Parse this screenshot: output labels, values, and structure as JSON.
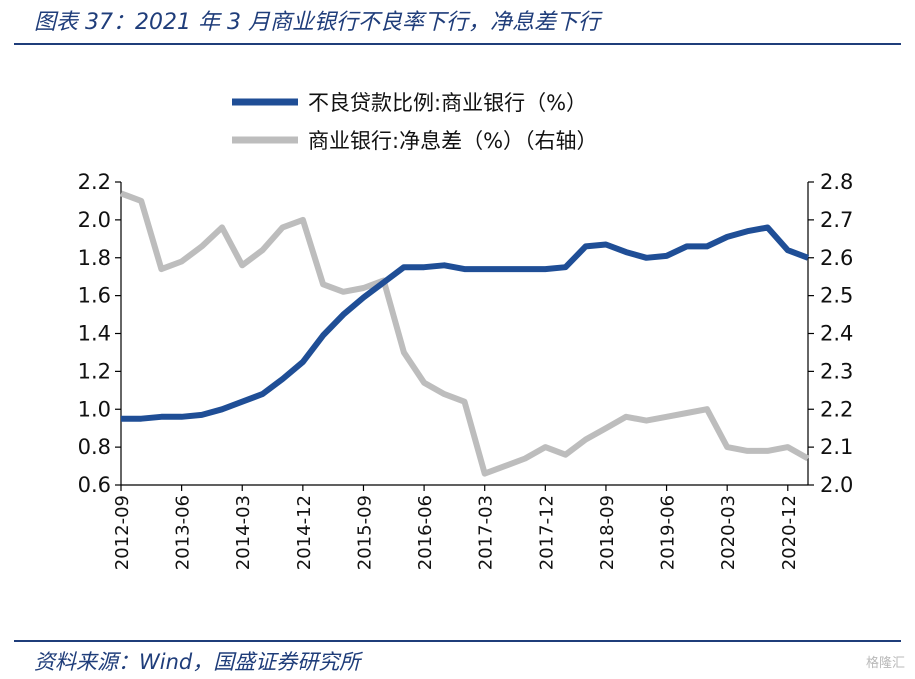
{
  "header": {
    "title": "图表 37：2021 年 3 月商业银行不良率下行，净息差下行"
  },
  "footer": {
    "source": "资料来源：Wind，国盛证券研究所",
    "watermark": "格隆汇"
  },
  "colors": {
    "npl": "#1f4e96",
    "nim": "#bdbdbd",
    "frame": "#1f3d7a"
  },
  "chart_data": {
    "type": "line",
    "title": "",
    "x": [
      "2012-09",
      "2012-12",
      "2013-03",
      "2013-06",
      "2013-09",
      "2013-12",
      "2014-03",
      "2014-06",
      "2014-09",
      "2014-12",
      "2015-03",
      "2015-06",
      "2015-09",
      "2015-12",
      "2016-03",
      "2016-06",
      "2016-09",
      "2016-12",
      "2017-03",
      "2017-06",
      "2017-09",
      "2017-12",
      "2018-03",
      "2018-06",
      "2018-09",
      "2018-12",
      "2019-03",
      "2019-06",
      "2019-09",
      "2019-12",
      "2020-03",
      "2020-06",
      "2020-09",
      "2020-12",
      "2021-03"
    ],
    "xtick_labels": [
      "2012-09",
      "2013-06",
      "2014-03",
      "2014-12",
      "2015-09",
      "2016-06",
      "2017-03",
      "2017-12",
      "2018-09",
      "2019-06",
      "2020-03",
      "2020-12"
    ],
    "y_left": {
      "ylim": [
        0.6,
        2.2
      ],
      "ticks": [
        "0.6",
        "0.8",
        "1.0",
        "1.2",
        "1.4",
        "1.6",
        "1.8",
        "2.0",
        "2.2"
      ]
    },
    "y_right": {
      "ylim": [
        2.0,
        2.8
      ],
      "ticks": [
        "2.0",
        "2.1",
        "2.2",
        "2.3",
        "2.4",
        "2.5",
        "2.6",
        "2.7",
        "2.8"
      ]
    },
    "legend_position": "top",
    "series": [
      {
        "name": "不良贷款比例:商业银行（%）",
        "axis": "left",
        "color": "#1f4e96",
        "values": [
          0.95,
          0.95,
          0.96,
          0.96,
          0.97,
          1.0,
          1.04,
          1.08,
          1.16,
          1.25,
          1.39,
          1.5,
          1.59,
          1.67,
          1.75,
          1.75,
          1.76,
          1.74,
          1.74,
          1.74,
          1.74,
          1.74,
          1.75,
          1.86,
          1.87,
          1.83,
          1.8,
          1.81,
          1.86,
          1.86,
          1.91,
          1.94,
          1.96,
          1.84,
          1.8
        ]
      },
      {
        "name": "商业银行:净息差（%）（右轴）",
        "axis": "right",
        "color": "#bdbdbd",
        "values": [
          2.77,
          2.75,
          2.57,
          2.59,
          2.63,
          2.68,
          2.58,
          2.62,
          2.68,
          2.7,
          2.53,
          2.51,
          2.52,
          2.54,
          2.35,
          2.27,
          2.24,
          2.22,
          2.03,
          2.05,
          2.07,
          2.1,
          2.08,
          2.12,
          2.15,
          2.18,
          2.17,
          2.18,
          2.19,
          2.2,
          2.1,
          2.09,
          2.09,
          2.1,
          2.07
        ]
      }
    ]
  }
}
